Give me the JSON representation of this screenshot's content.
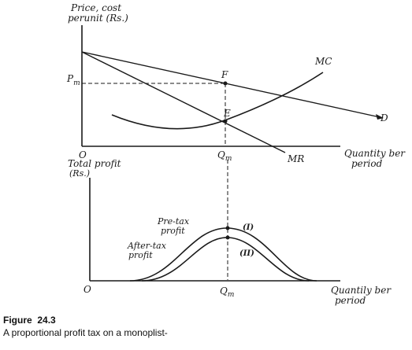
{
  "upper_panel": {
    "y_axis_label_line1": "Price, cost",
    "y_axis_label_line2": "perunit (Rs.)",
    "x_axis_label_line1": "Quantity ber",
    "x_axis_label_line2": "period",
    "origin_label": "O",
    "price_label": "P",
    "price_subscript": "m",
    "quantity_label": "Q",
    "quantity_subscript": "m",
    "curve_labels": {
      "demand": "D",
      "marginal_revenue": "MR",
      "marginal_cost": "MC"
    },
    "point_labels": {
      "price_point": "F",
      "equilibrium": "E"
    }
  },
  "lower_panel": {
    "y_axis_label_line1": "Total profit",
    "y_axis_label_line2": "(Rs.)",
    "x_axis_label_line1": "Quantily ber",
    "x_axis_label_line2": "period",
    "origin_label": "O",
    "quantity_label": "Q",
    "quantity_subscript": "m",
    "pre_tax_label_line1": "Pre-tax",
    "pre_tax_label_line2": "profit",
    "after_tax_label_line1": "After-tax",
    "after_tax_label_line2": "profit",
    "curve_i_label": "(I)",
    "curve_ii_label": "(II)"
  },
  "caption": {
    "figure_word": "Figure",
    "figure_number": "24.3",
    "text": "A proportional profit tax  on a monoplist-"
  }
}
